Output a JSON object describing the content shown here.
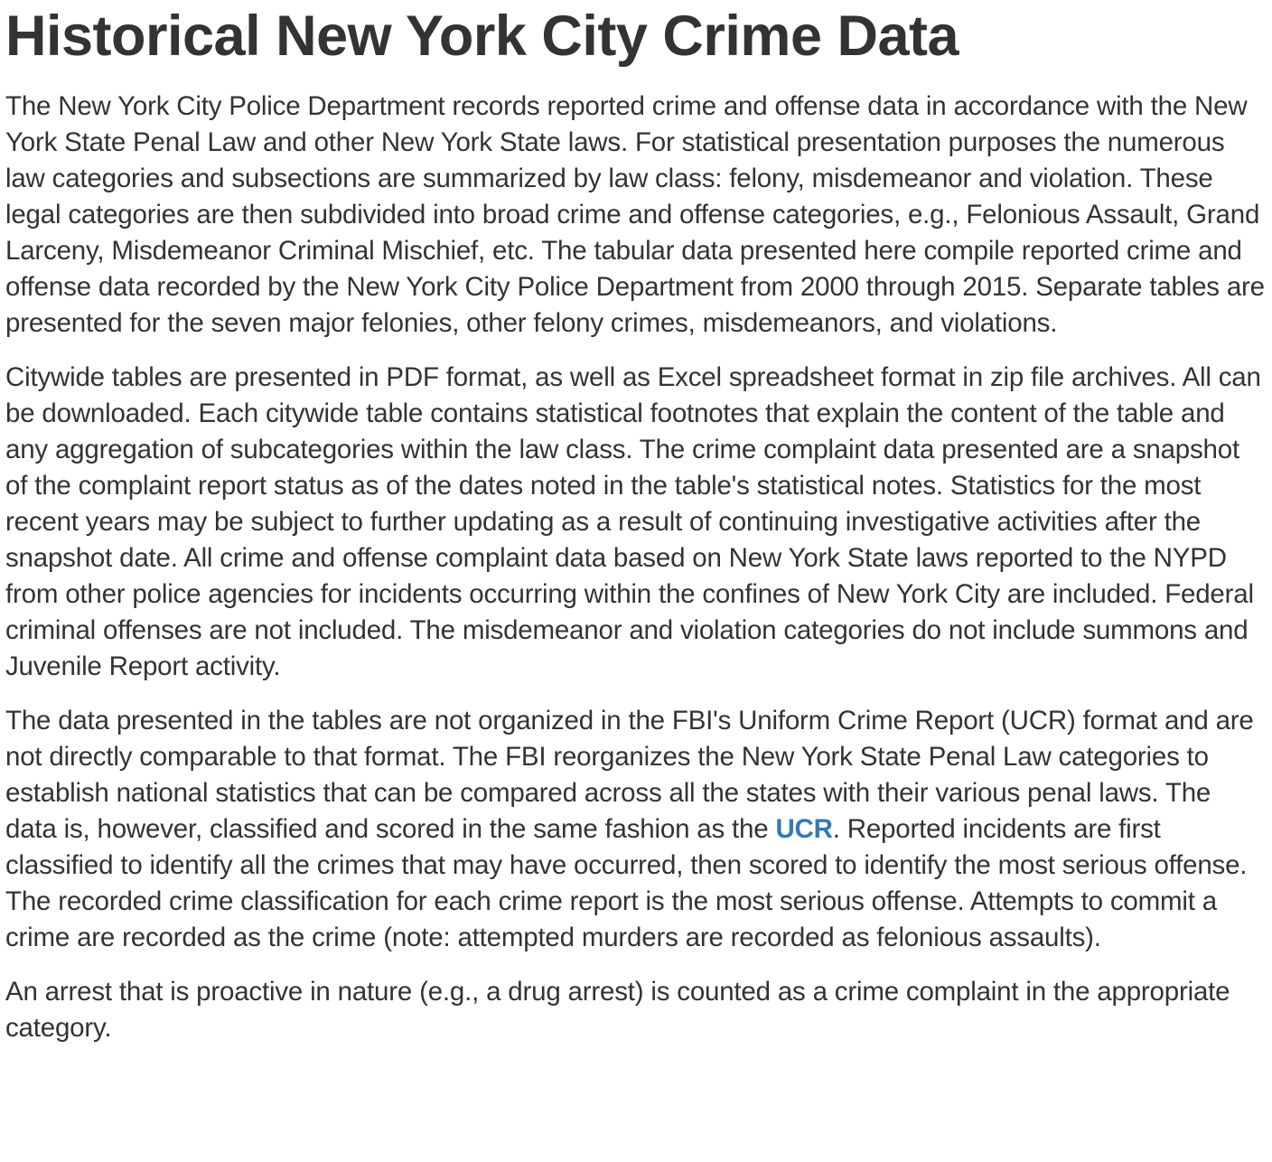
{
  "title": "Historical New York City Crime Data",
  "paragraphs": {
    "p1": "The New York City Police Department records reported crime and offense data in accordance with the New York State Penal Law and other New York State laws. For statistical presentation purposes the numerous law categories and subsections are summarized by law class: felony, misdemeanor and violation. These legal categories are then subdivided into broad crime and offense categories, e.g., Felonious Assault, Grand Larceny, Misdemeanor Criminal Mischief, etc. The tabular data presented here compile reported crime and offense data recorded by the New York City Police Department from 2000 through 2015. Separate tables are presented for the seven major felonies, other felony crimes, misdemeanors, and violations.",
    "p2": "Citywide tables are presented in PDF format, as well as Excel spreadsheet format in zip file archives. All can be downloaded. Each citywide table contains statistical footnotes that explain the content of the table and any aggregation of subcategories within the law class. The crime complaint data presented are a snapshot of the complaint report status as of the dates noted in the table's statistical notes. Statistics for the most recent years may be subject to further updating as a result of continuing investigative activities after the snapshot date. All crime and offense complaint data based on New York State laws reported to the NYPD from other police agencies for incidents occurring within the confines of New York City are included. Federal criminal offenses are not included. The misdemeanor and violation categories do not include summons and Juvenile Report activity.",
    "p3_before": "The data presented in the tables are not organized in the FBI's Uniform Crime Report (UCR) format and are not directly comparable to that format. The FBI reorganizes the New York State Penal Law categories to establish national statistics that can be compared across all the states with their various penal laws. The data is, however, classified and scored in the same fashion as the ",
    "p3_link": "UCR",
    "p3_after": ". Reported incidents are first classified to identify all the crimes that may have occurred, then scored to identify the most serious offense. The recorded crime classification for each crime report is the most serious offense. Attempts to commit a crime are recorded as the crime (note: attempted murders are recorded as felonious assaults).",
    "p4": "An arrest that is proactive in nature (e.g., a drug arrest) is counted as a crime complaint in the appropriate category."
  },
  "colors": {
    "text": "#333333",
    "link": "#337ab7",
    "background": "#ffffff"
  }
}
